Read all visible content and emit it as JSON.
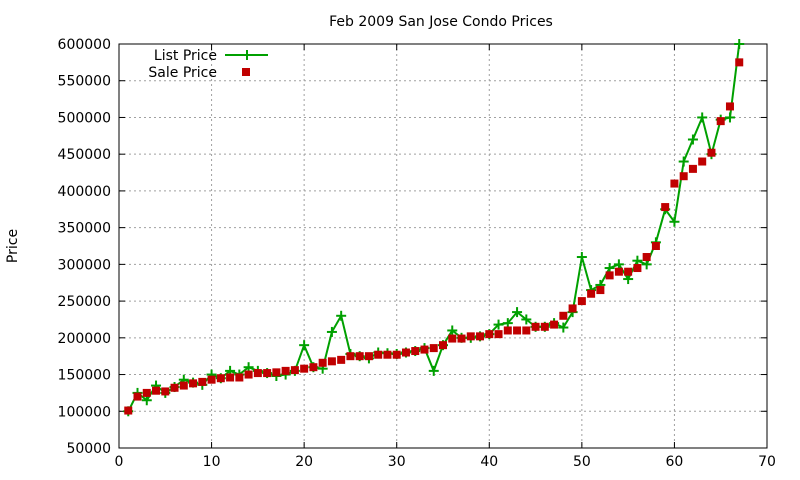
{
  "chart_data": {
    "type": "line",
    "title": "Feb 2009 San Jose Condo Prices",
    "xlabel": "",
    "ylabel": "Price",
    "xlim": [
      0,
      70
    ],
    "ylim": [
      50000,
      600000
    ],
    "xticks": [
      0,
      10,
      20,
      30,
      40,
      50,
      60,
      70
    ],
    "yticks": [
      50000,
      100000,
      150000,
      200000,
      250000,
      300000,
      350000,
      400000,
      450000,
      500000,
      550000,
      600000
    ],
    "grid": true,
    "legend_position": "top-left",
    "x": [
      1,
      2,
      3,
      4,
      5,
      6,
      7,
      8,
      9,
      10,
      11,
      12,
      13,
      14,
      15,
      16,
      17,
      18,
      19,
      20,
      21,
      22,
      23,
      24,
      25,
      26,
      27,
      28,
      29,
      30,
      31,
      32,
      33,
      34,
      35,
      36,
      37,
      38,
      39,
      40,
      41,
      42,
      43,
      44,
      45,
      46,
      47,
      48,
      49,
      50,
      51,
      52,
      53,
      54,
      55,
      56,
      57,
      58,
      59,
      60,
      61,
      62,
      63,
      64,
      65,
      66,
      67
    ],
    "series": [
      {
        "name": "List Price",
        "style": "line+cross",
        "color": "#00a000",
        "values": [
          100000,
          125000,
          115000,
          135000,
          125000,
          133000,
          143000,
          139000,
          136000,
          150000,
          145000,
          155000,
          150000,
          160000,
          155000,
          152000,
          148000,
          150000,
          155000,
          190000,
          160000,
          158000,
          208000,
          230000,
          178000,
          175000,
          172000,
          180000,
          179000,
          178000,
          180000,
          182000,
          186000,
          155000,
          190000,
          210000,
          200000,
          200000,
          202000,
          205000,
          218000,
          220000,
          235000,
          225000,
          215000,
          215000,
          220000,
          214000,
          235000,
          310000,
          265000,
          272000,
          295000,
          300000,
          280000,
          305000,
          300000,
          330000,
          375000,
          358000,
          440000,
          470000,
          500000,
          450000,
          497000,
          500000,
          600000
        ]
      },
      {
        "name": "Sale Price",
        "style": "square",
        "color": "#c00000",
        "values": [
          101000,
          120000,
          125000,
          128000,
          127000,
          132000,
          135000,
          138000,
          140000,
          143000,
          145000,
          146000,
          146000,
          150000,
          152000,
          152000,
          153000,
          155000,
          156000,
          158000,
          160000,
          166000,
          168000,
          170000,
          175000,
          175000,
          175000,
          177000,
          177000,
          177000,
          180000,
          182000,
          184000,
          186000,
          190000,
          199000,
          199000,
          202000,
          202000,
          205000,
          205000,
          210000,
          210000,
          210000,
          215000,
          215000,
          218000,
          230000,
          240000,
          250000,
          260000,
          265000,
          285000,
          290000,
          290000,
          295000,
          310000,
          325000,
          378000,
          410000,
          420000,
          430000,
          440000,
          452000,
          495000,
          515000,
          575000
        ]
      }
    ]
  }
}
